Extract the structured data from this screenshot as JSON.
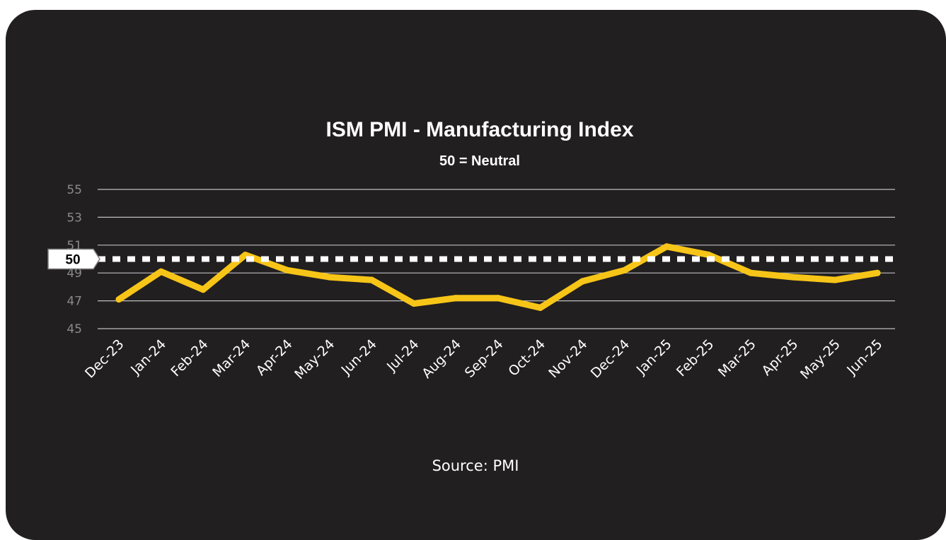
{
  "chart_data": {
    "type": "line",
    "title": "ISM PMI - Manufacturing Index",
    "subtitle": "50 = Neutral",
    "categories": [
      "Dec-23",
      "Jan-24",
      "Feb-24",
      "Mar-24",
      "Apr-24",
      "May-24",
      "Jun-24",
      "Jul-24",
      "Aug-24",
      "Sep-24",
      "Oct-24",
      "Nov-24",
      "Dec-24",
      "Jan-25",
      "Feb-25",
      "Mar-25",
      "Apr-25",
      "May-25",
      "Jun-25"
    ],
    "series": [
      {
        "values": [
          47.1,
          49.1,
          47.8,
          50.3,
          49.2,
          48.7,
          48.5,
          46.8,
          47.2,
          47.2,
          46.5,
          48.4,
          49.2,
          50.9,
          50.3,
          49.0,
          48.7,
          48.5,
          49.0
        ]
      }
    ],
    "ylim": [
      45,
      55
    ],
    "yticks": [
      45,
      47,
      49,
      51,
      53,
      55
    ],
    "reference_line": {
      "value": 50,
      "label": "50"
    },
    "source": "Source:  PMI",
    "grid": true
  },
  "colors": {
    "background": "#221f20",
    "line": "#f7c518",
    "grid": "#bfbfbf",
    "reference": "#ffffff"
  }
}
